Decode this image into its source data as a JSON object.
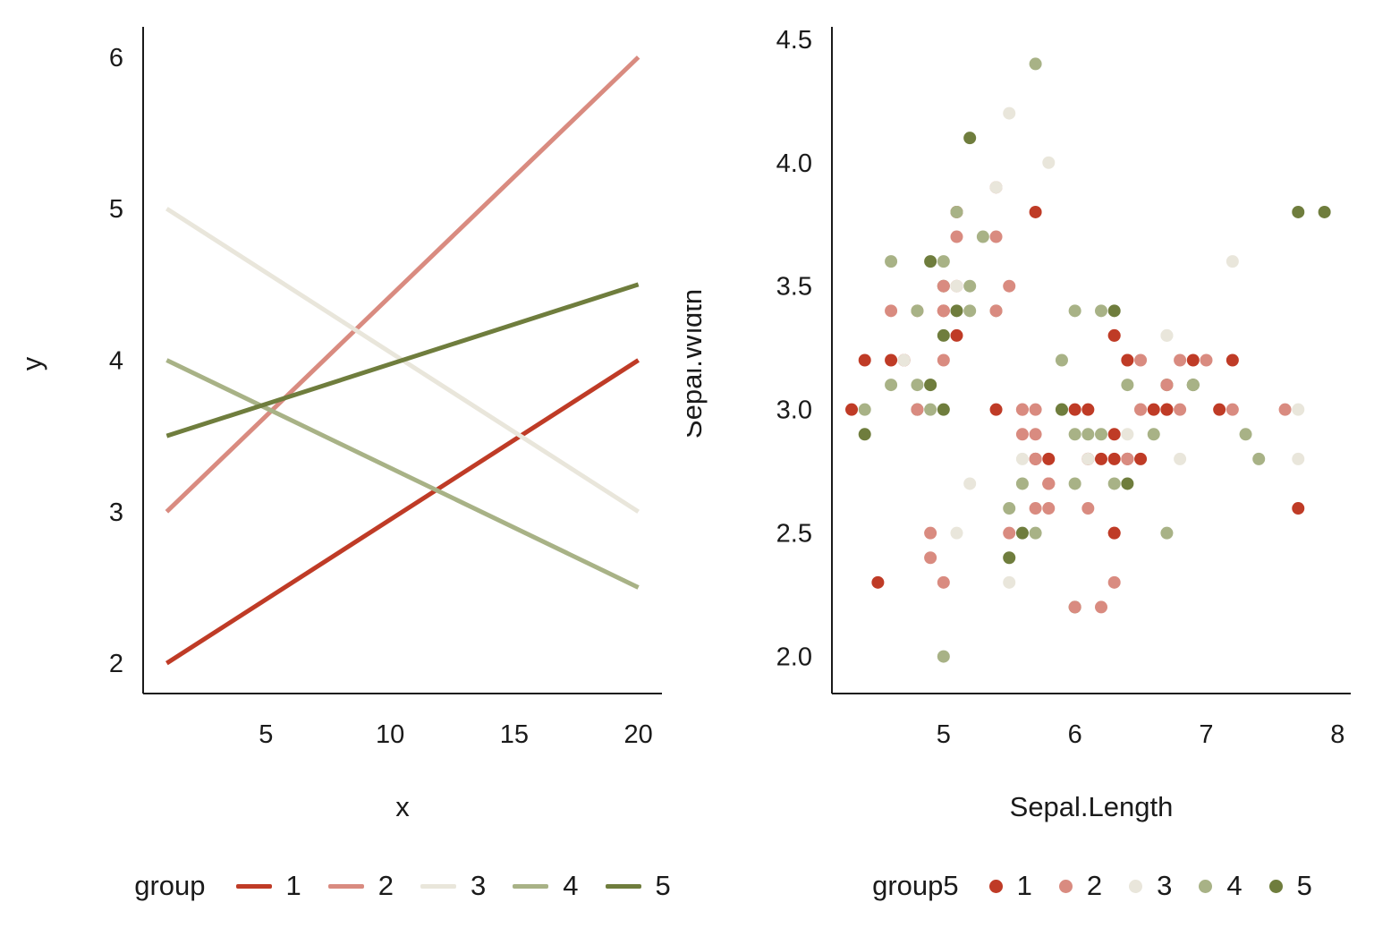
{
  "colors": {
    "background": "#ffffff",
    "text": "#1a1a1a",
    "axis": "#1a1a1a"
  },
  "palette": {
    "1": "#bf3b26",
    "2": "#d98b80",
    "3": "#e9e6db",
    "4": "#a8b286",
    "5": "#6f7d3d"
  },
  "chart_data": [
    {
      "type": "line",
      "title": "",
      "xlabel": "x",
      "ylabel": "y",
      "xlim": [
        0.05,
        20.95
      ],
      "ylim": [
        1.8,
        6.2
      ],
      "xticks": [
        5,
        10,
        15,
        20
      ],
      "xtick_labels": [
        "5",
        "10",
        "15",
        "20"
      ],
      "yticks": [
        2,
        3,
        4,
        5,
        6
      ],
      "ytick_labels": [
        "2",
        "3",
        "4",
        "5",
        "6"
      ],
      "grid": false,
      "legend": {
        "position": "bottom",
        "title": "group",
        "marker": "line",
        "entries": [
          "1",
          "2",
          "3",
          "4",
          "5"
        ]
      },
      "series": [
        {
          "name": "1",
          "x": [
            1,
            20
          ],
          "y": [
            2.0,
            4.0
          ]
        },
        {
          "name": "2",
          "x": [
            1,
            20
          ],
          "y": [
            3.0,
            6.0
          ]
        },
        {
          "name": "3",
          "x": [
            1,
            20
          ],
          "y": [
            5.0,
            3.0
          ]
        },
        {
          "name": "4",
          "x": [
            1,
            20
          ],
          "y": [
            4.0,
            2.5
          ]
        },
        {
          "name": "5",
          "x": [
            1,
            20
          ],
          "y": [
            3.5,
            4.5
          ]
        }
      ]
    },
    {
      "type": "scatter",
      "title": "",
      "xlabel": "Sepal.Length",
      "ylabel": "Sepal.Width",
      "xlim": [
        4.15,
        8.1
      ],
      "ylim": [
        1.85,
        4.55
      ],
      "xticks": [
        5,
        6,
        7,
        8
      ],
      "xtick_labels": [
        "5",
        "6",
        "7",
        "8"
      ],
      "yticks": [
        2.0,
        2.5,
        3.0,
        3.5,
        4.0,
        4.5
      ],
      "ytick_labels": [
        "2.0",
        "2.5",
        "3.0",
        "3.5",
        "4.0",
        "4.5"
      ],
      "grid": false,
      "legend": {
        "position": "bottom",
        "title": "group5",
        "marker": "point",
        "entries": [
          "1",
          "2",
          "3",
          "4",
          "5"
        ]
      },
      "points": [
        [
          5.1,
          3.5,
          2
        ],
        [
          4.9,
          3.0,
          4
        ],
        [
          4.7,
          3.2,
          1
        ],
        [
          4.6,
          3.1,
          4
        ],
        [
          5.0,
          3.6,
          4
        ],
        [
          5.4,
          3.9,
          2
        ],
        [
          4.6,
          3.4,
          2
        ],
        [
          5.0,
          3.4,
          1
        ],
        [
          4.4,
          2.9,
          5
        ],
        [
          4.9,
          3.1,
          4
        ],
        [
          5.4,
          3.7,
          2
        ],
        [
          4.8,
          3.4,
          2
        ],
        [
          4.8,
          3.0,
          5
        ],
        [
          4.3,
          3.0,
          1
        ],
        [
          5.8,
          4.0,
          3
        ],
        [
          5.7,
          4.4,
          4
        ],
        [
          5.4,
          3.9,
          3
        ],
        [
          5.1,
          3.5,
          3
        ],
        [
          5.7,
          3.8,
          1
        ],
        [
          5.1,
          3.8,
          1
        ],
        [
          5.4,
          3.4,
          4
        ],
        [
          5.1,
          3.7,
          2
        ],
        [
          4.6,
          3.6,
          4
        ],
        [
          5.1,
          3.3,
          1
        ],
        [
          4.8,
          3.4,
          4
        ],
        [
          5.0,
          3.0,
          5
        ],
        [
          5.0,
          3.4,
          2
        ],
        [
          5.2,
          3.5,
          4
        ],
        [
          5.2,
          3.4,
          4
        ],
        [
          4.7,
          3.2,
          3
        ],
        [
          4.8,
          3.1,
          4
        ],
        [
          5.4,
          3.4,
          2
        ],
        [
          5.2,
          4.1,
          5
        ],
        [
          5.5,
          4.2,
          3
        ],
        [
          4.9,
          3.1,
          5
        ],
        [
          5.0,
          3.2,
          2
        ],
        [
          5.5,
          3.5,
          2
        ],
        [
          4.9,
          3.6,
          5
        ],
        [
          4.4,
          3.0,
          4
        ],
        [
          5.1,
          3.4,
          5
        ],
        [
          5.0,
          3.5,
          5
        ],
        [
          4.5,
          2.3,
          1
        ],
        [
          4.4,
          3.2,
          1
        ],
        [
          5.0,
          3.5,
          2
        ],
        [
          5.1,
          3.8,
          2
        ],
        [
          4.8,
          3.0,
          2
        ],
        [
          5.1,
          3.8,
          4
        ],
        [
          4.6,
          3.2,
          1
        ],
        [
          5.3,
          3.7,
          4
        ],
        [
          5.0,
          3.3,
          5
        ],
        [
          7.0,
          3.2,
          2
        ],
        [
          6.4,
          3.2,
          2
        ],
        [
          6.9,
          3.1,
          4
        ],
        [
          5.5,
          2.3,
          3
        ],
        [
          6.5,
          2.8,
          1
        ],
        [
          5.7,
          2.8,
          1
        ],
        [
          6.3,
          3.3,
          2
        ],
        [
          4.9,
          2.4,
          2
        ],
        [
          6.6,
          2.9,
          4
        ],
        [
          5.2,
          2.7,
          3
        ],
        [
          5.0,
          2.0,
          4
        ],
        [
          5.9,
          3.0,
          4
        ],
        [
          6.0,
          2.2,
          5
        ],
        [
          6.1,
          2.9,
          4
        ],
        [
          5.6,
          2.9,
          2
        ],
        [
          6.7,
          3.1,
          5
        ],
        [
          5.6,
          3.0,
          2
        ],
        [
          5.8,
          2.7,
          2
        ],
        [
          6.2,
          2.2,
          2
        ],
        [
          5.6,
          2.5,
          5
        ],
        [
          5.9,
          3.2,
          4
        ],
        [
          6.1,
          2.8,
          1
        ],
        [
          6.3,
          2.5,
          2
        ],
        [
          6.1,
          2.8,
          3
        ],
        [
          6.4,
          2.9,
          3
        ],
        [
          6.6,
          3.0,
          1
        ],
        [
          6.8,
          2.8,
          3
        ],
        [
          6.7,
          3.0,
          1
        ],
        [
          6.0,
          2.9,
          4
        ],
        [
          5.7,
          2.6,
          2
        ],
        [
          5.5,
          2.4,
          3
        ],
        [
          5.5,
          2.4,
          5
        ],
        [
          5.8,
          2.7,
          1
        ],
        [
          6.0,
          2.7,
          4
        ],
        [
          5.4,
          3.0,
          1
        ],
        [
          6.0,
          3.4,
          4
        ],
        [
          6.7,
          3.1,
          4
        ],
        [
          6.3,
          2.3,
          2
        ],
        [
          5.6,
          3.0,
          2
        ],
        [
          5.5,
          2.5,
          2
        ],
        [
          5.5,
          2.6,
          4
        ],
        [
          6.1,
          3.0,
          3
        ],
        [
          5.8,
          2.6,
          2
        ],
        [
          5.0,
          2.3,
          2
        ],
        [
          5.6,
          2.7,
          4
        ],
        [
          5.7,
          3.0,
          2
        ],
        [
          5.7,
          2.9,
          2
        ],
        [
          6.2,
          2.9,
          4
        ],
        [
          5.1,
          2.5,
          3
        ],
        [
          5.7,
          2.8,
          2
        ],
        [
          6.3,
          3.3,
          1
        ],
        [
          5.8,
          2.7,
          3
        ],
        [
          7.1,
          3.0,
          1
        ],
        [
          6.3,
          2.9,
          1
        ],
        [
          6.5,
          3.0,
          1
        ],
        [
          7.6,
          3.0,
          2
        ],
        [
          4.9,
          2.5,
          2
        ],
        [
          7.3,
          2.9,
          4
        ],
        [
          6.7,
          2.5,
          4
        ],
        [
          7.2,
          3.6,
          3
        ],
        [
          6.5,
          3.2,
          2
        ],
        [
          6.4,
          2.7,
          5
        ],
        [
          6.8,
          3.0,
          2
        ],
        [
          5.7,
          2.5,
          4
        ],
        [
          5.8,
          2.8,
          1
        ],
        [
          6.4,
          3.2,
          1
        ],
        [
          6.5,
          3.0,
          3
        ],
        [
          7.7,
          3.8,
          5
        ],
        [
          7.7,
          2.6,
          1
        ],
        [
          6.0,
          2.2,
          2
        ],
        [
          6.9,
          3.2,
          1
        ],
        [
          5.6,
          2.8,
          3
        ],
        [
          7.7,
          2.8,
          3
        ],
        [
          6.3,
          2.7,
          4
        ],
        [
          6.7,
          3.3,
          3
        ],
        [
          7.2,
          3.2,
          1
        ],
        [
          6.2,
          2.8,
          1
        ],
        [
          6.1,
          3.0,
          1
        ],
        [
          6.4,
          2.8,
          1
        ],
        [
          7.2,
          3.0,
          2
        ],
        [
          7.4,
          2.8,
          4
        ],
        [
          7.9,
          3.8,
          5
        ],
        [
          6.4,
          2.8,
          2
        ],
        [
          6.3,
          2.8,
          1
        ],
        [
          6.1,
          2.6,
          2
        ],
        [
          7.7,
          3.0,
          3
        ],
        [
          6.3,
          3.4,
          5
        ],
        [
          6.4,
          3.1,
          4
        ],
        [
          6.0,
          3.0,
          1
        ],
        [
          6.9,
          3.1,
          5
        ],
        [
          6.7,
          3.1,
          2
        ],
        [
          6.9,
          3.1,
          4
        ],
        [
          5.8,
          2.7,
          2
        ],
        [
          6.8,
          3.2,
          2
        ],
        [
          6.7,
          3.3,
          3
        ],
        [
          6.7,
          3.0,
          1
        ],
        [
          6.3,
          2.5,
          1
        ],
        [
          6.5,
          3.0,
          2
        ],
        [
          6.2,
          3.4,
          4
        ],
        [
          5.9,
          3.0,
          5
        ]
      ]
    }
  ]
}
